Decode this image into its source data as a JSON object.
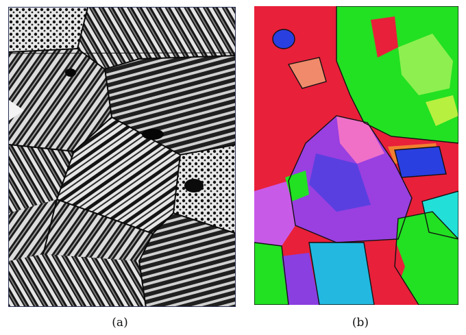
{
  "figure": {
    "caption_a": "(a)",
    "caption_b": "(b)"
  },
  "colors": {
    "micrograph_dark": "#1a1a1a",
    "micrograph_light": "#e6e6e6",
    "ebsd_red": "#e8203a",
    "ebsd_green": "#22e022",
    "ebsd_blue": "#2a3fe0",
    "ebsd_purple": "#9a3fe0",
    "ebsd_cyan": "#22e0d8",
    "ebsd_pink": "#f070c8",
    "ebsd_orange": "#f08030",
    "ebsd_yellowgreen": "#b8f040"
  }
}
